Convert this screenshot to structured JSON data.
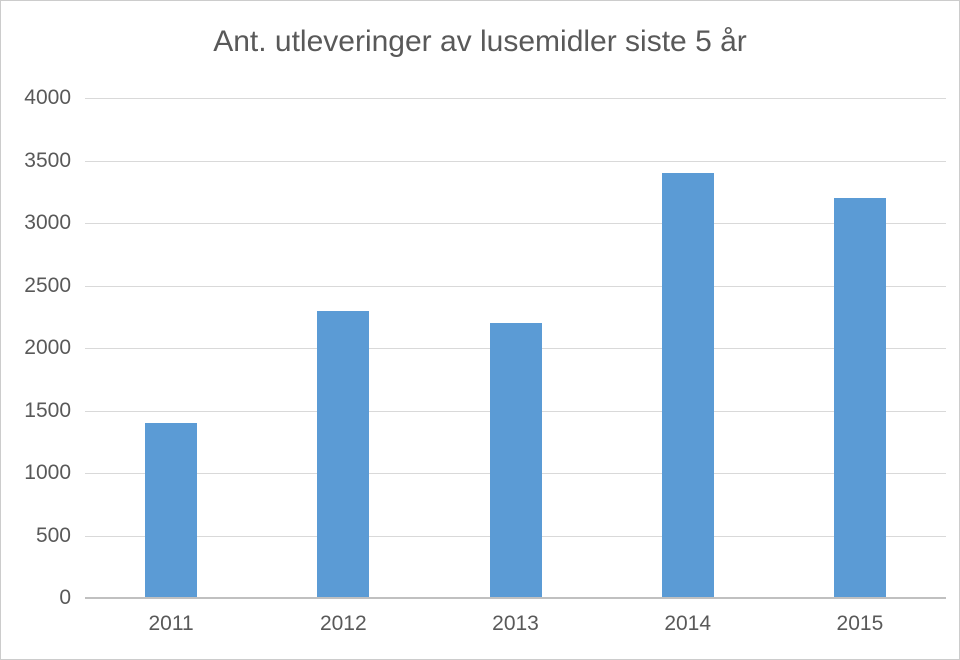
{
  "chart_data": {
    "type": "bar",
    "title": "Ant. utleveringer av lusemidler siste 5 år",
    "categories": [
      "2011",
      "2012",
      "2013",
      "2014",
      "2015"
    ],
    "values": [
      1400,
      2300,
      2200,
      3400,
      3200
    ],
    "series_name": "Ant. utleveringer av lusemidler",
    "xlabel": "",
    "ylabel": "",
    "ylim": [
      0,
      4000
    ],
    "y_ticks": [
      0,
      500,
      1000,
      1500,
      2000,
      2500,
      3000,
      3500,
      4000
    ],
    "grid": "horizontal",
    "legend": "none"
  },
  "colors": {
    "bar": "#5b9bd5",
    "text": "#595959",
    "gridline": "#d9d9d9",
    "axis_line": "#c0c0c0",
    "frame_border": "#cccccc",
    "background": "#ffffff"
  }
}
